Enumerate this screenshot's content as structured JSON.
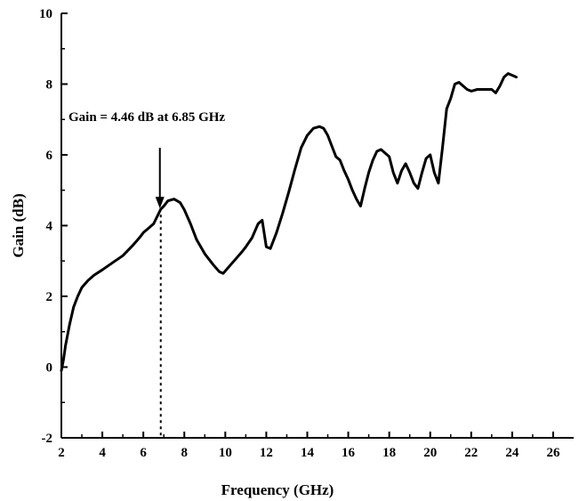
{
  "chart_data": {
    "type": "line",
    "xlabel": "Frequency (GHz)",
    "ylabel": "Gain (dB)",
    "xlim": [
      2,
      27
    ],
    "ylim": [
      -2,
      10
    ],
    "x_ticks": [
      2,
      4,
      6,
      8,
      10,
      12,
      14,
      16,
      18,
      20,
      22,
      24,
      26
    ],
    "y_ticks": [
      -2,
      0,
      2,
      4,
      6,
      8,
      10
    ],
    "series": [
      {
        "color": "#000000",
        "x": [
          2.0,
          2.1,
          2.2,
          2.4,
          2.6,
          2.8,
          3.0,
          3.3,
          3.6,
          4.0,
          4.5,
          5.0,
          5.5,
          5.8,
          6.0,
          6.2,
          6.5,
          6.85,
          7.0,
          7.2,
          7.5,
          7.8,
          8.0,
          8.3,
          8.6,
          9.0,
          9.4,
          9.7,
          9.9,
          10.2,
          10.5,
          10.8,
          11.0,
          11.3,
          11.6,
          11.8,
          12.0,
          12.2,
          12.5,
          12.8,
          13.1,
          13.4,
          13.7,
          14.0,
          14.3,
          14.6,
          14.8,
          15.0,
          15.2,
          15.4,
          15.6,
          15.8,
          16.0,
          16.2,
          16.4,
          16.6,
          16.8,
          17.0,
          17.2,
          17.4,
          17.6,
          17.8,
          18.0,
          18.2,
          18.4,
          18.6,
          18.8,
          19.0,
          19.2,
          19.4,
          19.6,
          19.8,
          20.0,
          20.2,
          20.4,
          20.6,
          20.8,
          21.0,
          21.2,
          21.4,
          21.6,
          21.8,
          22.0,
          22.3,
          22.6,
          23.0,
          23.2,
          23.4,
          23.6,
          23.8,
          24.0,
          24.2
        ],
        "values": [
          -0.1,
          0.2,
          0.6,
          1.2,
          1.7,
          2.0,
          2.25,
          2.45,
          2.6,
          2.75,
          2.95,
          3.15,
          3.45,
          3.65,
          3.8,
          3.9,
          4.05,
          4.46,
          4.55,
          4.7,
          4.75,
          4.65,
          4.45,
          4.05,
          3.6,
          3.2,
          2.9,
          2.7,
          2.65,
          2.85,
          3.05,
          3.25,
          3.4,
          3.65,
          4.05,
          4.15,
          3.4,
          3.35,
          3.8,
          4.35,
          4.95,
          5.6,
          6.2,
          6.55,
          6.75,
          6.8,
          6.75,
          6.55,
          6.25,
          5.95,
          5.85,
          5.55,
          5.3,
          5.0,
          4.75,
          4.55,
          5.05,
          5.5,
          5.85,
          6.1,
          6.15,
          6.05,
          5.95,
          5.5,
          5.2,
          5.55,
          5.75,
          5.5,
          5.2,
          5.05,
          5.5,
          5.9,
          6.0,
          5.5,
          5.2,
          6.2,
          7.3,
          7.6,
          8.0,
          8.05,
          7.95,
          7.85,
          7.8,
          7.85,
          7.85,
          7.85,
          7.75,
          7.95,
          8.2,
          8.3,
          8.25,
          8.2
        ]
      }
    ],
    "annotation": {
      "text": "Gain = 4.46 dB at 6.85 GHz",
      "x": 6.85,
      "y": 4.46
    }
  }
}
